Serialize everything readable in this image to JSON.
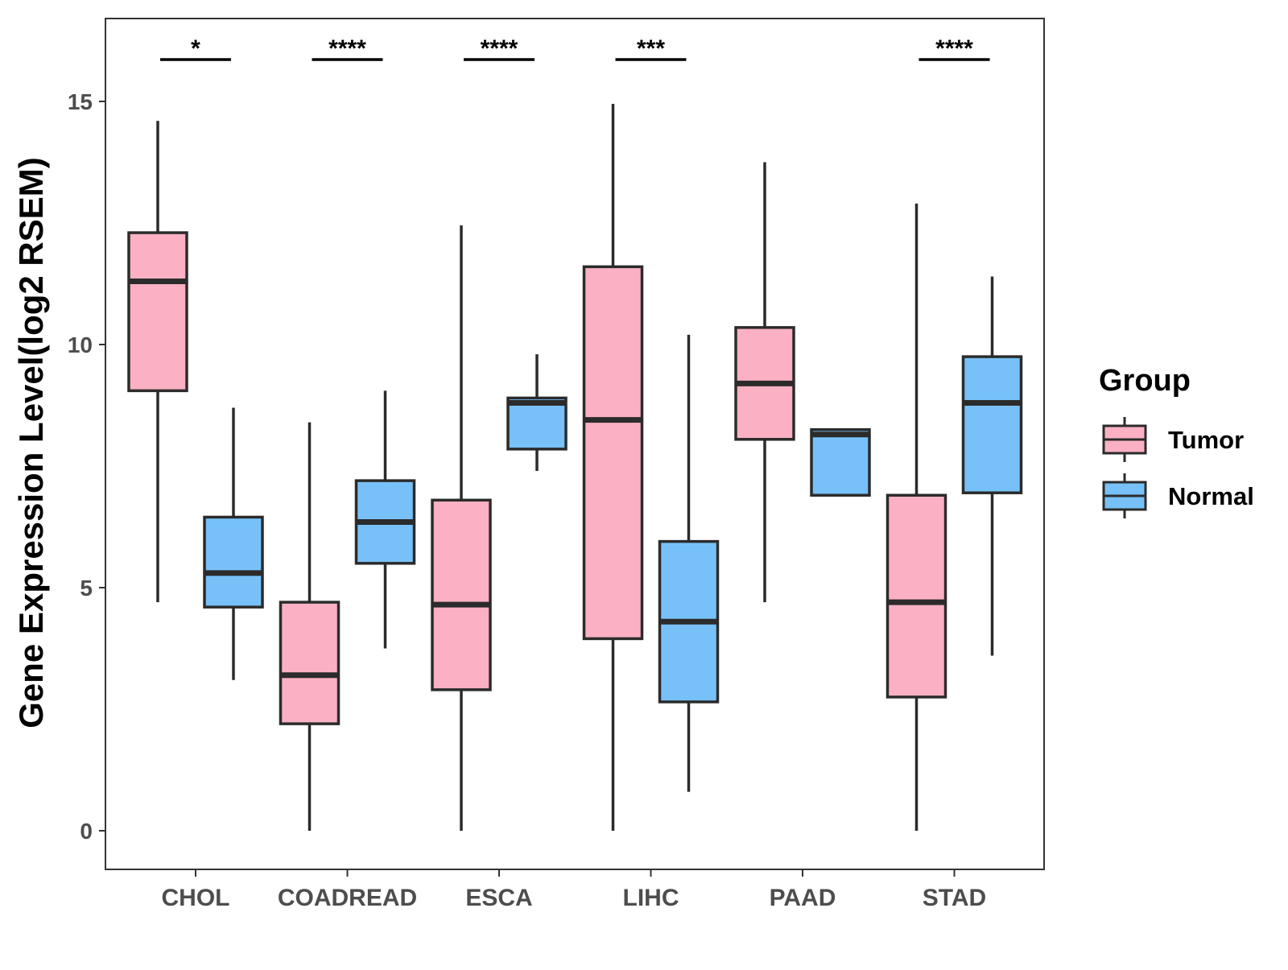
{
  "chart_data": {
    "type": "boxplot",
    "title": "",
    "xlabel": "",
    "ylabel": "Gene Expression Level(log2 RSEM)",
    "ylim": [
      -0.8,
      16.7
    ],
    "yticks": [
      0,
      5,
      10,
      15
    ],
    "categories": [
      "CHOL",
      "COADREAD",
      "ESCA",
      "LIHC",
      "PAAD",
      "STAD"
    ],
    "series": [
      {
        "name": "Tumor",
        "color": "#FBB1C3",
        "boxes": [
          {
            "min": 4.7,
            "q1": 9.05,
            "median": 11.3,
            "q3": 12.3,
            "max": 14.6
          },
          {
            "min": 0.0,
            "q1": 2.2,
            "median": 3.2,
            "q3": 4.7,
            "max": 8.4
          },
          {
            "min": 0.0,
            "q1": 2.9,
            "median": 4.65,
            "q3": 6.8,
            "max": 12.45
          },
          {
            "min": 0.0,
            "q1": 3.95,
            "median": 8.45,
            "q3": 11.6,
            "max": 14.95
          },
          {
            "min": 4.7,
            "q1": 8.05,
            "median": 9.2,
            "q3": 10.35,
            "max": 13.75
          },
          {
            "min": 0.0,
            "q1": 2.75,
            "median": 4.7,
            "q3": 6.9,
            "max": 12.9
          }
        ]
      },
      {
        "name": "Normal",
        "color": "#77C1F8",
        "boxes": [
          {
            "min": 3.1,
            "q1": 4.6,
            "median": 5.3,
            "q3": 6.45,
            "max": 8.7
          },
          {
            "min": 3.75,
            "q1": 5.5,
            "median": 6.35,
            "q3": 7.2,
            "max": 9.05
          },
          {
            "min": 7.4,
            "q1": 7.85,
            "median": 8.8,
            "q3": 8.9,
            "max": 9.8
          },
          {
            "min": 0.8,
            "q1": 2.65,
            "median": 4.3,
            "q3": 5.95,
            "max": 10.2
          },
          {
            "min": 6.9,
            "q1": 6.9,
            "median": 8.15,
            "q3": 8.25,
            "max": 8.25
          },
          {
            "min": 3.6,
            "q1": 6.95,
            "median": 8.8,
            "q3": 9.75,
            "max": 11.4
          }
        ]
      }
    ],
    "significance": [
      "*",
      "****",
      "****",
      "***",
      "",
      "****"
    ],
    "legend": {
      "title": "Group",
      "position": "right"
    }
  }
}
